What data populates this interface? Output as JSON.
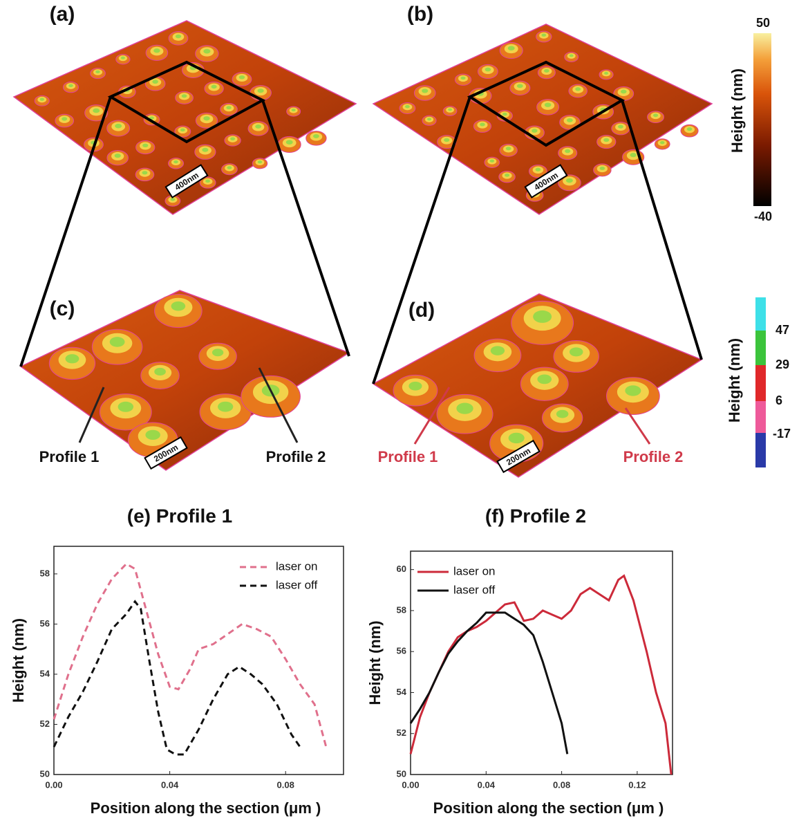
{
  "panels": {
    "labels": [
      "(a)",
      "(b)",
      "(c)",
      "(d)"
    ],
    "scale_bars": [
      "400nm",
      "400nm",
      "200nm",
      "200nm"
    ],
    "profiles_c": [
      "Profile 1",
      "Profile 2"
    ],
    "profiles_d": [
      "Profile 1",
      "Profile 2"
    ]
  },
  "colorbars": [
    {
      "title": "Height (nm)",
      "labels": [
        50,
        -40
      ]
    },
    {
      "title": "Height (nm)",
      "labels": [
        47,
        29,
        6,
        -17
      ]
    }
  ],
  "chart_data": [
    {
      "type": "line",
      "title": "(e) Profile 1",
      "x_label": "Position along the section (μm )",
      "y_label": "Height (nm)",
      "xlim": [
        0,
        0.1
      ],
      "ylim": [
        50,
        59.1
      ],
      "xticks": [
        {
          "value": 0,
          "label": "0.00"
        },
        0.04,
        0.08
      ],
      "yticks": [
        50,
        52,
        54,
        56,
        58
      ],
      "legend": "upper right",
      "series": [
        {
          "name": "laser on",
          "color": "#e0708c",
          "line_style": "dashed",
          "x": [
            0,
            0.005,
            0.01,
            0.015,
            0.02,
            0.025,
            0.028,
            0.032,
            0.036,
            0.04,
            0.043,
            0.047,
            0.05,
            0.055,
            0.06,
            0.065,
            0.07,
            0.075,
            0.08,
            0.085,
            0.09,
            0.094
          ],
          "values": [
            52.2,
            54,
            55.5,
            56.8,
            57.8,
            58.4,
            58.2,
            56.5,
            54.8,
            53.5,
            53.4,
            54.2,
            55,
            55.2,
            55.6,
            56,
            55.8,
            55.5,
            54.6,
            53.6,
            52.8,
            51.1
          ]
        },
        {
          "name": "laser off",
          "color": "#111111",
          "line_style": "dashed",
          "x": [
            0,
            0.005,
            0.01,
            0.015,
            0.02,
            0.025,
            0.028,
            0.03,
            0.033,
            0.036,
            0.039,
            0.042,
            0.045,
            0.05,
            0.055,
            0.06,
            0.064,
            0.068,
            0.072,
            0.077,
            0.082,
            0.085
          ],
          "values": [
            51.1,
            52.3,
            53.3,
            54.5,
            55.8,
            56.4,
            56.9,
            56.6,
            54.5,
            52.5,
            51,
            50.8,
            50.8,
            51.8,
            53,
            54,
            54.3,
            54,
            53.6,
            52.8,
            51.6,
            51.1
          ]
        }
      ]
    },
    {
      "type": "line",
      "title": "(f) Profile 2",
      "x_label": "Position along the section (μm )",
      "y_label": "Height (nm)",
      "xlim": [
        0,
        0.1387
      ],
      "ylim": [
        50,
        60.9
      ],
      "xticks": [
        {
          "value": 0,
          "label": "0.00"
        },
        0.04,
        0.08,
        0.12
      ],
      "yticks": [
        50,
        52,
        54,
        56,
        58,
        60
      ],
      "legend": "upper left",
      "series": [
        {
          "name": "laser on",
          "color": "#cc2a3a",
          "line_style": "solid",
          "x": [
            0,
            0.005,
            0.01,
            0.015,
            0.02,
            0.025,
            0.03,
            0.035,
            0.04,
            0.045,
            0.05,
            0.055,
            0.06,
            0.065,
            0.07,
            0.075,
            0.08,
            0.085,
            0.09,
            0.095,
            0.1,
            0.105,
            0.11,
            0.113,
            0.118,
            0.125,
            0.13,
            0.135,
            0.138
          ],
          "values": [
            51,
            52.8,
            54,
            55,
            56,
            56.7,
            57,
            57.2,
            57.5,
            57.9,
            58.3,
            58.4,
            57.5,
            57.6,
            58,
            57.8,
            57.6,
            58,
            58.8,
            59.1,
            58.8,
            58.5,
            59.5,
            59.7,
            58.5,
            56,
            54,
            52.5,
            50
          ]
        },
        {
          "name": "laser off",
          "color": "#111111",
          "line_style": "solid",
          "x": [
            0,
            0.005,
            0.01,
            0.015,
            0.02,
            0.025,
            0.03,
            0.035,
            0.04,
            0.045,
            0.05,
            0.055,
            0.06,
            0.065,
            0.07,
            0.075,
            0.08,
            0.083
          ],
          "values": [
            52.5,
            53.2,
            54,
            55,
            55.9,
            56.5,
            57,
            57.4,
            57.9,
            57.9,
            57.9,
            57.6,
            57.3,
            56.8,
            55.5,
            54,
            52.5,
            51
          ]
        }
      ]
    }
  ]
}
